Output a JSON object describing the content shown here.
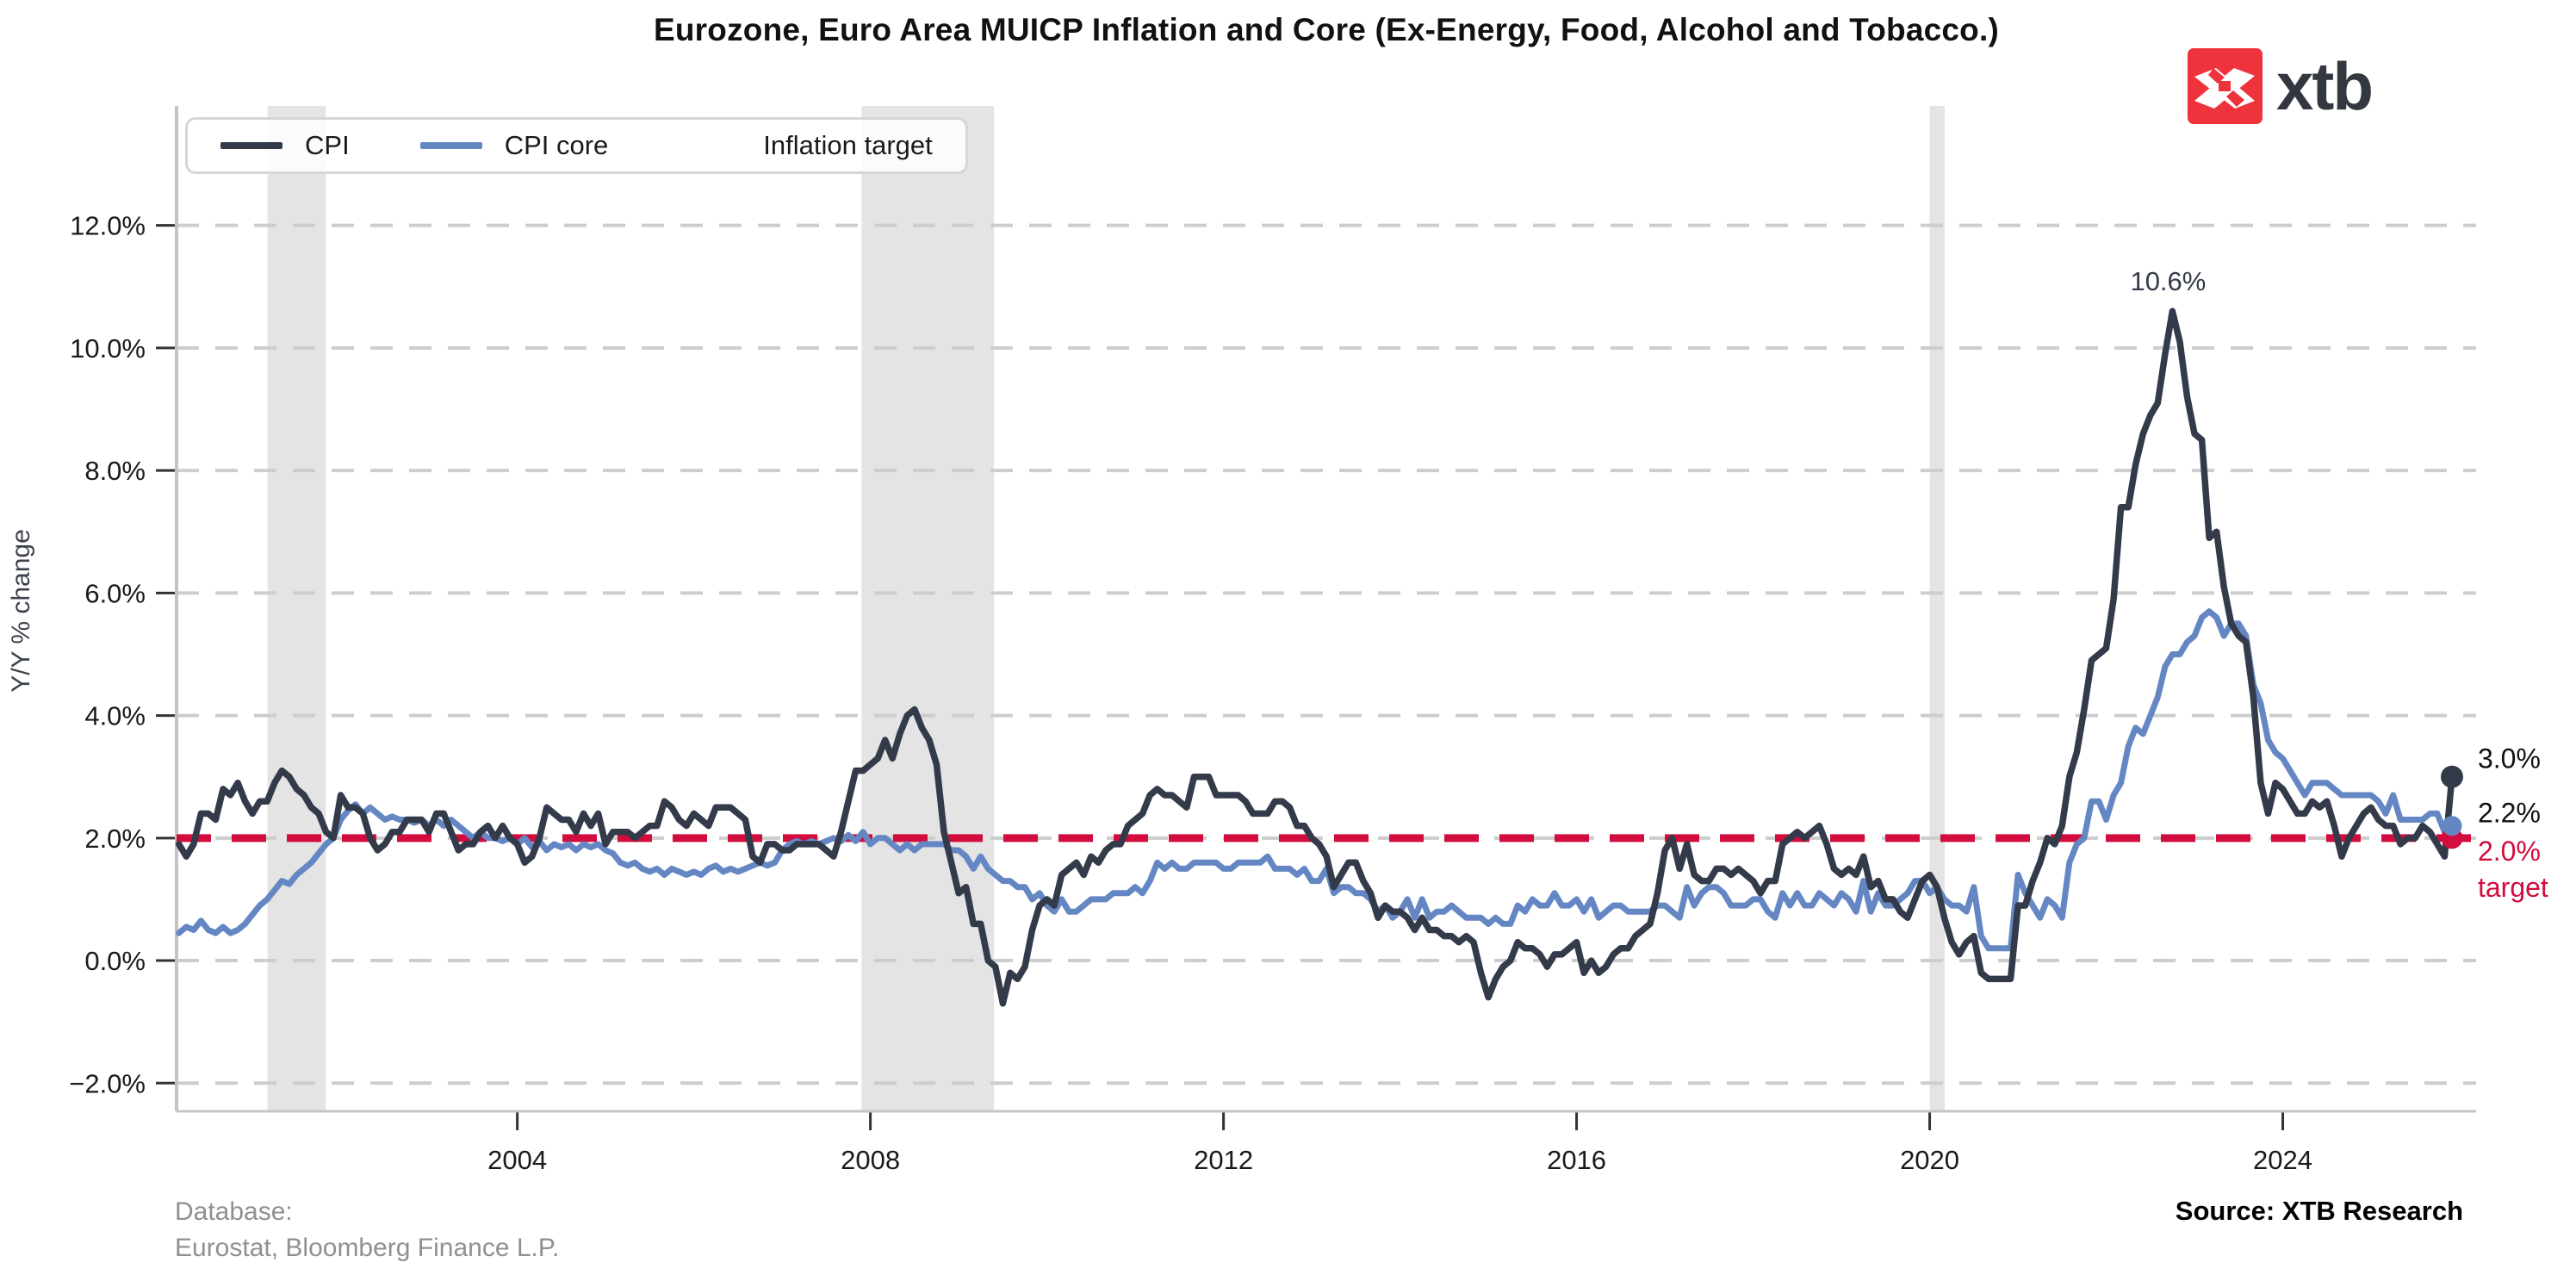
{
  "title": "Eurozone, Euro Area MUICP Inflation and Core (Ex-Energy, Food, Alcohol and Tobacco.)",
  "logo": {
    "text": "xtb"
  },
  "ylabel": "Y/Y % change",
  "legend": {
    "items": [
      {
        "label": "CPI",
        "color": "#333a49",
        "style": "solid"
      },
      {
        "label": "CPI core",
        "color": "#6487c4",
        "style": "solid"
      },
      {
        "label": "Inflation target",
        "color": "#d20c3c",
        "style": "dashed"
      }
    ]
  },
  "annotations": {
    "peak_label": "10.6%",
    "cpi_end_label": "3.0%",
    "core_end_label": "2.2%",
    "target_line1": "2.0%",
    "target_line2": "target"
  },
  "footer": {
    "database_line1": "Database:",
    "database_line2": "Eurostat, Bloomberg Finance L.P.",
    "source": "Source: XTB Research"
  },
  "chart_data": {
    "type": "line",
    "title": "Eurozone, Euro Area MUICP Inflation and Core (Ex-Energy, Food, Alcohol and Tobacco.)",
    "xlabel": "",
    "ylabel": "Y/Y % change",
    "xlim": [
      2000.14,
      2026.19
    ],
    "ylim": [
      -2.46,
      13.95
    ],
    "grid": true,
    "legend_position": "top-left",
    "x_start": 2000.1667,
    "x_step": 0.0833333,
    "yticks": [
      {
        "v": 12,
        "label": "12.0%"
      },
      {
        "v": 10,
        "label": "10.0%"
      },
      {
        "v": 8,
        "label": "8.0%"
      },
      {
        "v": 6,
        "label": "6.0%"
      },
      {
        "v": 4,
        "label": "4.0%"
      },
      {
        "v": 2,
        "label": "2.0%"
      },
      {
        "v": 0,
        "label": "0.0%"
      },
      {
        "v": -2,
        "label": "−2.0%"
      }
    ],
    "xticks": [
      {
        "v": 2004,
        "label": "2004"
      },
      {
        "v": 2008,
        "label": "2008"
      },
      {
        "v": 2012,
        "label": "2012"
      },
      {
        "v": 2016,
        "label": "2016"
      },
      {
        "v": 2020,
        "label": "2020"
      },
      {
        "v": 2024,
        "label": "2024"
      }
    ],
    "target_value": 2.0,
    "recession_bands": [
      [
        2001.17,
        2001.83
      ],
      [
        2007.9,
        2009.4
      ],
      [
        2020.0,
        2020.17
      ]
    ],
    "colors": {
      "cpi": "#333a49",
      "core": "#6487c4",
      "target": "#d20c3c",
      "grid": "#cdcdcd",
      "band": "#e4e4e4",
      "spine": "#c4c4c4",
      "tick": "#333333",
      "tick_label": "#1a1a1a",
      "annotation_dark": "#333a49"
    },
    "series": [
      {
        "name": "CPI",
        "color": "#333a49",
        "values": [
          1.9,
          1.7,
          1.9,
          2.4,
          2.4,
          2.3,
          2.8,
          2.7,
          2.9,
          2.6,
          2.4,
          2.6,
          2.6,
          2.9,
          3.1,
          3.0,
          2.8,
          2.7,
          2.5,
          2.4,
          2.1,
          2.0,
          2.7,
          2.5,
          2.5,
          2.4,
          2.0,
          1.8,
          1.9,
          2.1,
          2.1,
          2.3,
          2.3,
          2.3,
          2.1,
          2.4,
          2.4,
          2.1,
          1.8,
          1.9,
          1.9,
          2.1,
          2.2,
          2.0,
          2.2,
          2.0,
          1.9,
          1.6,
          1.7,
          2.0,
          2.5,
          2.4,
          2.3,
          2.3,
          2.1,
          2.4,
          2.2,
          2.4,
          1.9,
          2.1,
          2.1,
          2.1,
          2.0,
          2.1,
          2.2,
          2.2,
          2.6,
          2.5,
          2.3,
          2.2,
          2.4,
          2.3,
          2.2,
          2.5,
          2.5,
          2.5,
          2.4,
          2.3,
          1.7,
          1.6,
          1.9,
          1.9,
          1.8,
          1.8,
          1.9,
          1.9,
          1.9,
          1.9,
          1.8,
          1.7,
          2.1,
          2.6,
          3.1,
          3.1,
          3.2,
          3.3,
          3.6,
          3.3,
          3.7,
          4.0,
          4.1,
          3.8,
          3.6,
          3.2,
          2.1,
          1.6,
          1.1,
          1.2,
          0.6,
          0.6,
          0.0,
          -0.1,
          -0.7,
          -0.2,
          -0.3,
          -0.1,
          0.5,
          0.9,
          1.0,
          0.9,
          1.4,
          1.5,
          1.6,
          1.4,
          1.7,
          1.6,
          1.8,
          1.9,
          1.9,
          2.2,
          2.3,
          2.4,
          2.7,
          2.8,
          2.7,
          2.7,
          2.6,
          2.5,
          3.0,
          3.0,
          3.0,
          2.7,
          2.7,
          2.7,
          2.7,
          2.6,
          2.4,
          2.4,
          2.4,
          2.6,
          2.6,
          2.5,
          2.2,
          2.2,
          2.0,
          1.9,
          1.7,
          1.2,
          1.4,
          1.6,
          1.6,
          1.3,
          1.1,
          0.7,
          0.9,
          0.8,
          0.8,
          0.7,
          0.5,
          0.7,
          0.5,
          0.5,
          0.4,
          0.4,
          0.3,
          0.4,
          0.3,
          -0.2,
          -0.6,
          -0.3,
          -0.1,
          0.0,
          0.3,
          0.2,
          0.2,
          0.1,
          -0.1,
          0.1,
          0.1,
          0.2,
          0.3,
          -0.2,
          0.0,
          -0.2,
          -0.1,
          0.1,
          0.2,
          0.2,
          0.4,
          0.5,
          0.6,
          1.1,
          1.8,
          2.0,
          1.5,
          1.9,
          1.4,
          1.3,
          1.3,
          1.5,
          1.5,
          1.4,
          1.5,
          1.4,
          1.3,
          1.1,
          1.3,
          1.3,
          1.9,
          2.0,
          2.1,
          2.0,
          2.1,
          2.2,
          1.9,
          1.5,
          1.4,
          1.5,
          1.4,
          1.7,
          1.2,
          1.3,
          1.0,
          1.0,
          0.8,
          0.7,
          1.0,
          1.3,
          1.4,
          1.2,
          0.7,
          0.3,
          0.1,
          0.3,
          0.4,
          -0.2,
          -0.3,
          -0.3,
          -0.3,
          -0.3,
          0.9,
          0.9,
          1.3,
          1.6,
          2.0,
          1.9,
          2.2,
          3.0,
          3.4,
          4.1,
          4.9,
          5.0,
          5.1,
          5.9,
          7.4,
          7.4,
          8.1,
          8.6,
          8.9,
          9.1,
          9.9,
          10.6,
          10.1,
          9.2,
          8.6,
          8.5,
          6.9,
          7.0,
          6.1,
          5.5,
          5.3,
          5.2,
          4.3,
          2.9,
          2.4,
          2.9,
          2.8,
          2.6,
          2.4,
          2.4,
          2.6,
          2.5,
          2.6,
          2.2,
          1.7,
          2.0,
          2.2,
          2.4,
          2.5,
          2.3,
          2.2,
          2.2,
          1.9,
          2.0,
          2.0,
          2.2,
          2.1,
          1.9,
          1.7,
          3.0
        ]
      },
      {
        "name": "CPI core",
        "color": "#6487c4",
        "values": [
          0.45,
          0.55,
          0.5,
          0.65,
          0.5,
          0.45,
          0.55,
          0.45,
          0.5,
          0.6,
          0.75,
          0.9,
          1.0,
          1.15,
          1.3,
          1.25,
          1.4,
          1.5,
          1.6,
          1.75,
          1.9,
          2.0,
          2.3,
          2.45,
          2.55,
          2.4,
          2.5,
          2.4,
          2.3,
          2.35,
          2.3,
          2.3,
          2.25,
          2.3,
          2.2,
          2.3,
          2.2,
          2.3,
          2.2,
          2.1,
          2.0,
          2.1,
          2.0,
          2.0,
          1.95,
          2.0,
          1.9,
          2.0,
          1.85,
          1.95,
          1.8,
          1.9,
          1.85,
          1.9,
          1.8,
          1.9,
          1.85,
          1.9,
          1.8,
          1.75,
          1.6,
          1.55,
          1.6,
          1.5,
          1.45,
          1.5,
          1.4,
          1.5,
          1.45,
          1.4,
          1.45,
          1.4,
          1.5,
          1.55,
          1.45,
          1.5,
          1.45,
          1.5,
          1.55,
          1.6,
          1.55,
          1.6,
          1.8,
          1.9,
          1.95,
          1.9,
          1.95,
          1.9,
          1.95,
          2.0,
          1.95,
          2.05,
          1.95,
          2.1,
          1.9,
          2.0,
          2.0,
          1.9,
          1.8,
          1.9,
          1.8,
          1.9,
          1.9,
          1.9,
          1.9,
          1.8,
          1.8,
          1.7,
          1.5,
          1.7,
          1.5,
          1.4,
          1.3,
          1.3,
          1.2,
          1.2,
          1.0,
          1.1,
          0.9,
          0.8,
          1.0,
          0.8,
          0.8,
          0.9,
          1.0,
          1.0,
          1.0,
          1.1,
          1.1,
          1.1,
          1.2,
          1.1,
          1.3,
          1.6,
          1.5,
          1.6,
          1.5,
          1.5,
          1.6,
          1.6,
          1.6,
          1.6,
          1.5,
          1.5,
          1.6,
          1.6,
          1.6,
          1.6,
          1.7,
          1.5,
          1.5,
          1.5,
          1.4,
          1.5,
          1.3,
          1.3,
          1.5,
          1.1,
          1.2,
          1.2,
          1.1,
          1.1,
          1.0,
          0.8,
          0.9,
          0.7,
          0.8,
          1.0,
          0.7,
          1.0,
          0.7,
          0.8,
          0.8,
          0.9,
          0.8,
          0.7,
          0.7,
          0.7,
          0.6,
          0.7,
          0.6,
          0.6,
          0.9,
          0.8,
          1.0,
          0.9,
          0.9,
          1.1,
          0.9,
          0.9,
          1.0,
          0.8,
          1.0,
          0.7,
          0.8,
          0.9,
          0.9,
          0.8,
          0.8,
          0.8,
          0.8,
          0.9,
          0.9,
          0.8,
          0.7,
          1.2,
          0.9,
          1.1,
          1.2,
          1.2,
          1.1,
          0.9,
          0.9,
          0.9,
          1.0,
          1.0,
          0.8,
          0.7,
          1.1,
          0.9,
          1.1,
          0.9,
          0.9,
          1.1,
          1.0,
          0.9,
          1.1,
          1.0,
          0.8,
          1.3,
          0.8,
          1.1,
          0.9,
          0.9,
          1.0,
          1.1,
          1.3,
          1.3,
          1.1,
          1.2,
          1.0,
          0.9,
          0.9,
          0.8,
          1.2,
          0.4,
          0.2,
          0.2,
          0.2,
          0.2,
          1.4,
          1.1,
          0.9,
          0.7,
          1.0,
          0.9,
          0.7,
          1.6,
          1.9,
          2.0,
          2.6,
          2.6,
          2.3,
          2.7,
          2.9,
          3.5,
          3.8,
          3.7,
          4.0,
          4.3,
          4.8,
          5.0,
          5.0,
          5.2,
          5.3,
          5.6,
          5.7,
          5.6,
          5.3,
          5.5,
          5.5,
          5.3,
          4.5,
          4.2,
          3.6,
          3.4,
          3.3,
          3.1,
          2.9,
          2.7,
          2.9,
          2.9,
          2.9,
          2.8,
          2.7,
          2.7,
          2.7,
          2.7,
          2.7,
          2.6,
          2.4,
          2.7,
          2.3,
          2.3,
          2.3,
          2.3,
          2.4,
          2.4,
          2.1,
          2.2
        ]
      }
    ]
  }
}
